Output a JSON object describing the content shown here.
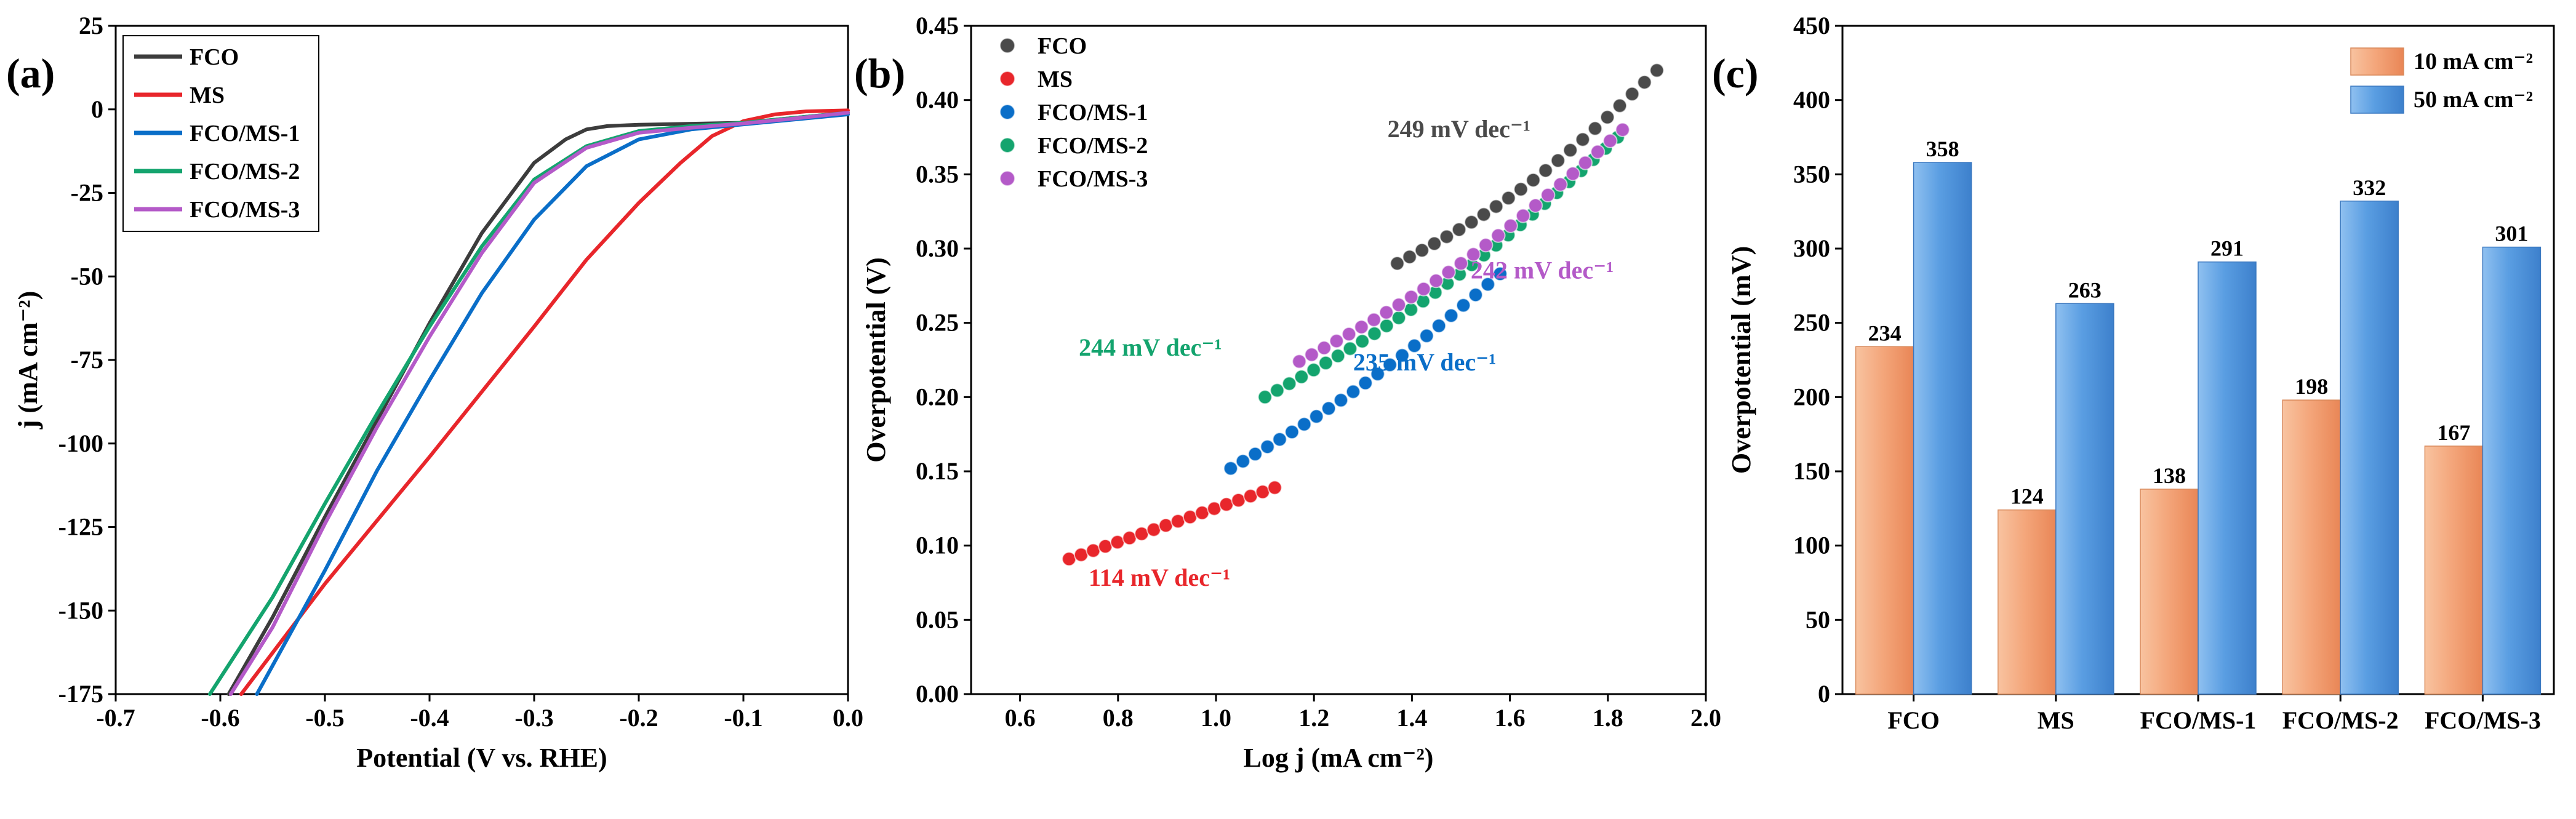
{
  "chart_data": [
    {
      "panel": "(a)",
      "type": "line",
      "xlabel": "Potential (V vs. RHE)",
      "ylabel": "j (mA cm⁻²)",
      "xlim": [
        -0.7,
        0.0
      ],
      "ylim": [
        -175,
        25
      ],
      "xticks": [
        "-0.7",
        "-0.6",
        "-0.5",
        "-0.4",
        "-0.3",
        "-0.2",
        "-0.1",
        "0.0"
      ],
      "yticks": [
        "25",
        "0",
        "-25",
        "-50",
        "-75",
        "-100",
        "-125",
        "-150",
        "-175"
      ],
      "legend": [
        "FCO",
        "MS",
        "FCO/MS-1",
        "FCO/MS-2",
        "FCO/MS-3"
      ],
      "series": [
        {
          "name": "FCO",
          "color": "#3c3c3c",
          "x": [
            -0.592,
            -0.55,
            -0.5,
            -0.45,
            -0.4,
            -0.35,
            -0.3,
            -0.27,
            -0.25,
            -0.23,
            -0.2,
            -0.15,
            -0.1,
            -0.05,
            0.0
          ],
          "y": [
            -175,
            -152,
            -122,
            -93,
            -64,
            -37,
            -16,
            -9,
            -6,
            -5,
            -4.6,
            -4.3,
            -4,
            -2.5,
            -1
          ]
        },
        {
          "name": "MS",
          "color": "#e8262b",
          "x": [
            -0.58,
            -0.5,
            -0.4,
            -0.3,
            -0.25,
            -0.2,
            -0.16,
            -0.13,
            -0.1,
            -0.07,
            -0.04,
            0.0
          ],
          "y": [
            -175,
            -142,
            -104,
            -65,
            -45,
            -28,
            -16,
            -8,
            -3.5,
            -1.5,
            -0.6,
            -0.3
          ]
        },
        {
          "name": "FCO/MS-1",
          "color": "#0a6ec8",
          "x": [
            -0.565,
            -0.5,
            -0.45,
            -0.4,
            -0.35,
            -0.3,
            -0.25,
            -0.2,
            -0.15,
            -0.1,
            -0.05,
            0.0
          ],
          "y": [
            -175,
            -138,
            -108,
            -81,
            -55,
            -33,
            -17,
            -9,
            -6,
            -4.5,
            -3,
            -1.5
          ]
        },
        {
          "name": "FCO/MS-2",
          "color": "#14a46e",
          "x": [
            -0.61,
            -0.55,
            -0.5,
            -0.45,
            -0.4,
            -0.35,
            -0.3,
            -0.25,
            -0.2,
            -0.15,
            -0.1,
            -0.05,
            0.0
          ],
          "y": [
            -175,
            -146,
            -118,
            -91,
            -65,
            -41,
            -21,
            -11,
            -6.5,
            -5,
            -4,
            -2.5,
            -1
          ]
        },
        {
          "name": "FCO/MS-3",
          "color": "#b45ac8",
          "x": [
            -0.59,
            -0.55,
            -0.5,
            -0.45,
            -0.4,
            -0.35,
            -0.3,
            -0.25,
            -0.2,
            -0.15,
            -0.1,
            -0.05,
            0.0
          ],
          "y": [
            -175,
            -155,
            -124,
            -95,
            -68,
            -43,
            -22,
            -11.5,
            -7,
            -5.5,
            -4.2,
            -2.7,
            -1
          ]
        }
      ]
    },
    {
      "panel": "(b)",
      "type": "scatter",
      "xlabel": "Log j (mA cm⁻²)",
      "ylabel": "Overpotential (V)",
      "xlim": [
        0.5,
        2.0
      ],
      "ylim": [
        0.0,
        0.45
      ],
      "xticks": [
        "0.6",
        "0.8",
        "1.0",
        "1.2",
        "1.4",
        "1.6",
        "1.8",
        "2.0"
      ],
      "yticks": [
        "0.00",
        "0.05",
        "0.10",
        "0.15",
        "0.20",
        "0.25",
        "0.30",
        "0.35",
        "0.40",
        "0.45"
      ],
      "legend": [
        "FCO",
        "MS",
        "FCO/MS-1",
        "FCO/MS-2",
        "FCO/MS-3"
      ],
      "series": [
        {
          "name": "FCO",
          "color": "#4a4a4a",
          "x_range": [
            1.37,
            1.9
          ],
          "y_range": [
            0.29,
            0.42
          ],
          "curve": 0.012
        },
        {
          "name": "MS",
          "color": "#e8262b",
          "x_range": [
            0.7,
            1.12
          ],
          "y_range": [
            0.091,
            0.139
          ],
          "curve": 0.0
        },
        {
          "name": "FCO/MS-1",
          "color": "#0a6ec8",
          "x_range": [
            1.03,
            1.58
          ],
          "y_range": [
            0.152,
            0.283
          ],
          "curve": 0.008
        },
        {
          "name": "FCO/MS-2",
          "color": "#14a46e",
          "x_range": [
            1.1,
            1.82
          ],
          "y_range": [
            0.2,
            0.375
          ],
          "curve": 0.014
        },
        {
          "name": "FCO/MS-3",
          "color": "#b45ac8",
          "x_range": [
            1.17,
            1.83
          ],
          "y_range": [
            0.224,
            0.38
          ],
          "curve": 0.012
        }
      ],
      "annotations": [
        {
          "text": "249 mV dec⁻¹",
          "color": "#4a4a4a",
          "x": 1.35,
          "y": 0.375
        },
        {
          "text": "242 mV dec⁻¹",
          "color": "#b45ac8",
          "x": 1.52,
          "y": 0.28
        },
        {
          "text": "244 mV dec⁻¹",
          "color": "#14a46e",
          "x": 0.72,
          "y": 0.228
        },
        {
          "text": "235 mV dec⁻¹",
          "color": "#0a6ec8",
          "x": 1.28,
          "y": 0.218
        },
        {
          "text": "114 mV dec⁻¹",
          "color": "#e8262b",
          "x": 0.74,
          "y": 0.073
        }
      ]
    },
    {
      "panel": "(c)",
      "type": "bar",
      "xlabel": "",
      "ylabel": "Overpotential (mV)",
      "ylim": [
        0,
        450
      ],
      "yticks": [
        "0",
        "50",
        "100",
        "150",
        "200",
        "250",
        "300",
        "350",
        "400",
        "450"
      ],
      "categories": [
        "FCO",
        "MS",
        "FCO/MS-1",
        "FCO/MS-2",
        "FCO/MS-3"
      ],
      "series": [
        {
          "name": "10 mA cm⁻²",
          "color": "#f4a77c",
          "values": [
            234,
            124,
            138,
            198,
            167
          ],
          "labels": [
            "234",
            "124",
            "138",
            "198",
            "167"
          ]
        },
        {
          "name": "50 mA cm⁻²",
          "color": "#5a9ee2",
          "values": [
            358,
            263,
            291,
            332,
            301
          ],
          "labels": [
            "358",
            "263",
            "291",
            "332",
            "301"
          ]
        }
      ]
    }
  ]
}
